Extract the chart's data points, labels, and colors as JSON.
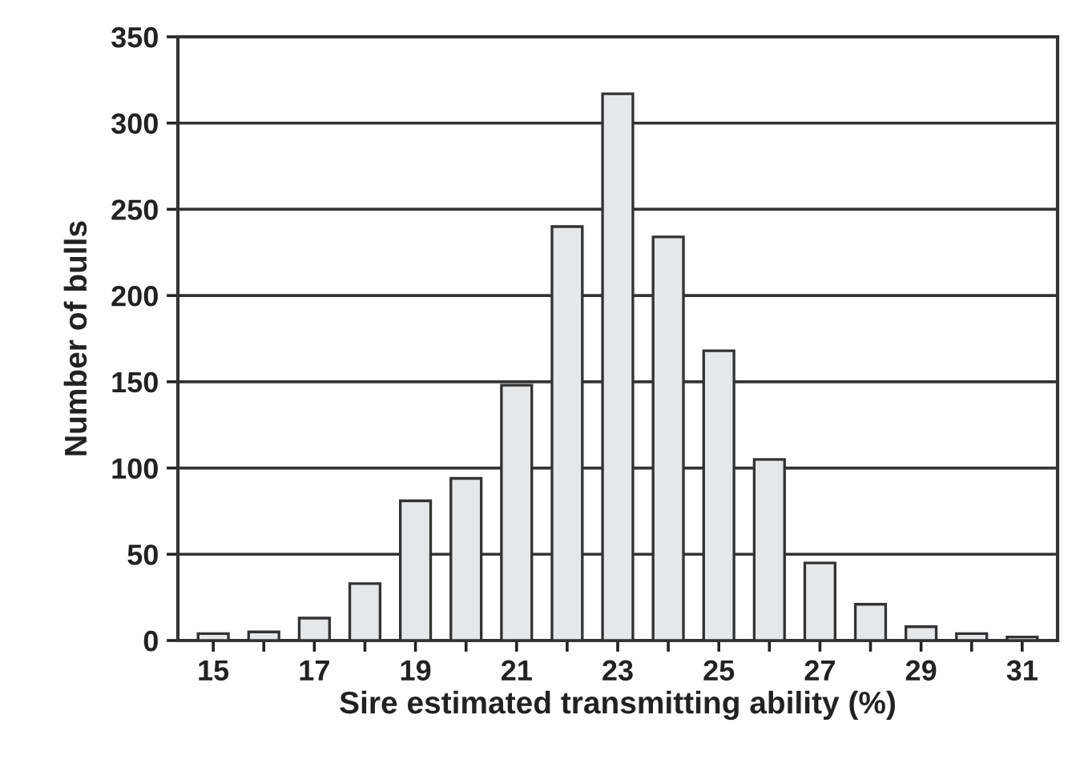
{
  "chart_data": {
    "type": "bar",
    "xlabel": "Sire estimated transmitting ability (%)",
    "ylabel": "Number of bulls",
    "categories": [
      "15",
      null,
      "17",
      null,
      "19",
      null,
      "21",
      null,
      "23",
      null,
      "25",
      null,
      "27",
      null,
      "29",
      null,
      "31"
    ],
    "values": [
      4,
      5,
      13,
      33,
      81,
      94,
      148,
      240,
      317,
      234,
      168,
      105,
      45,
      21,
      8,
      4,
      2
    ],
    "color": "#e6e7e9",
    "ylim": [
      0,
      350
    ],
    "yticks": [
      0,
      50,
      100,
      150,
      200,
      250,
      300,
      350
    ],
    "grid": "y",
    "legend": false
  }
}
